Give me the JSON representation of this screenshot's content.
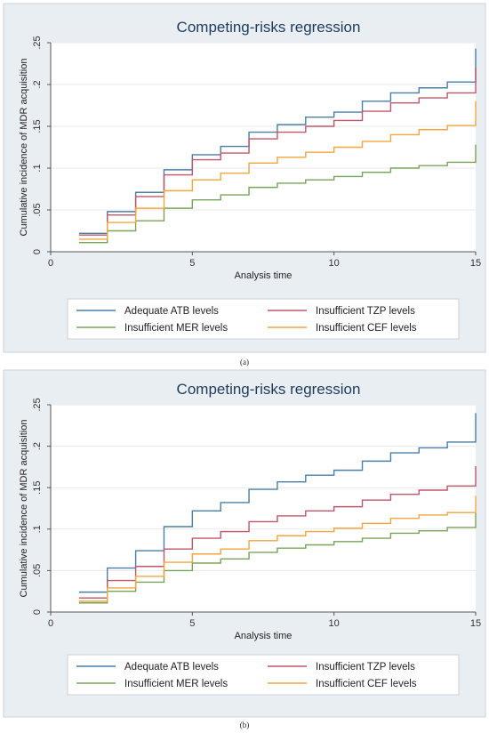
{
  "figure": {
    "caption_a": "(a)",
    "caption_b": "(b)"
  },
  "chart_data": [
    {
      "type": "line",
      "step": true,
      "title": "Competing-risks regression",
      "xlabel": "Analysis time",
      "ylabel": "Cumulative incidence of MDR acquisition",
      "xlim": [
        0,
        15
      ],
      "ylim": [
        0,
        0.25
      ],
      "xticks": [
        0,
        5,
        10,
        15
      ],
      "xtick_labels": [
        "0",
        "5",
        "10",
        "15"
      ],
      "yticks": [
        0,
        0.05,
        0.1,
        0.15,
        0.2,
        0.25
      ],
      "ytick_labels": [
        "0",
        ".05",
        ".1",
        ".15",
        ".2",
        ".25"
      ],
      "grid": true,
      "legend_position": "bottom",
      "x": [
        1,
        2,
        3,
        4,
        5,
        6,
        7,
        8,
        9,
        10,
        11,
        12,
        13,
        14,
        15
      ],
      "series": [
        {
          "name": "Adequate ATB levels",
          "color": "#4a7fa5",
          "values": [
            0.022,
            0.048,
            0.071,
            0.098,
            0.116,
            0.126,
            0.143,
            0.152,
            0.161,
            0.167,
            0.18,
            0.19,
            0.196,
            0.203,
            0.243
          ]
        },
        {
          "name": "Insufficient TZP levels",
          "color": "#c0566a",
          "values": [
            0.02,
            0.044,
            0.066,
            0.092,
            0.11,
            0.118,
            0.135,
            0.143,
            0.15,
            0.157,
            0.168,
            0.178,
            0.184,
            0.19,
            0.22
          ]
        },
        {
          "name": "Insufficient MER levels",
          "color": "#7aa35a",
          "values": [
            0.011,
            0.025,
            0.037,
            0.052,
            0.062,
            0.068,
            0.077,
            0.082,
            0.086,
            0.09,
            0.095,
            0.1,
            0.103,
            0.107,
            0.128
          ]
        },
        {
          "name": "Insufficient CEF levels",
          "color": "#f2a63d",
          "values": [
            0.015,
            0.035,
            0.052,
            0.073,
            0.086,
            0.094,
            0.106,
            0.113,
            0.119,
            0.125,
            0.132,
            0.14,
            0.146,
            0.151,
            0.18
          ]
        }
      ]
    },
    {
      "type": "line",
      "step": true,
      "title": "Competing-risks regression",
      "xlabel": "Analysis time",
      "ylabel": "Cumulative incidence of MDR acquisition",
      "xlim": [
        0,
        15
      ],
      "ylim": [
        0,
        0.25
      ],
      "xticks": [
        0,
        5,
        10,
        15
      ],
      "xtick_labels": [
        "0",
        "5",
        "10",
        "15"
      ],
      "yticks": [
        0,
        0.05,
        0.1,
        0.15,
        0.2,
        0.25
      ],
      "ytick_labels": [
        "0",
        ".05",
        ".1",
        ".15",
        ".2",
        ".25"
      ],
      "grid": true,
      "legend_position": "bottom",
      "x": [
        1,
        2,
        3,
        4,
        5,
        6,
        7,
        8,
        9,
        10,
        11,
        12,
        13,
        14,
        15
      ],
      "series": [
        {
          "name": "Adequate ATB levels",
          "color": "#4a7fa5",
          "values": [
            0.024,
            0.053,
            0.074,
            0.103,
            0.122,
            0.132,
            0.148,
            0.157,
            0.165,
            0.171,
            0.182,
            0.192,
            0.198,
            0.205,
            0.24
          ]
        },
        {
          "name": "Insufficient TZP levels",
          "color": "#c0566a",
          "values": [
            0.017,
            0.038,
            0.055,
            0.076,
            0.089,
            0.097,
            0.109,
            0.116,
            0.122,
            0.127,
            0.135,
            0.142,
            0.147,
            0.152,
            0.176
          ]
        },
        {
          "name": "Insufficient MER levels",
          "color": "#7aa35a",
          "values": [
            0.011,
            0.025,
            0.036,
            0.05,
            0.059,
            0.064,
            0.072,
            0.077,
            0.081,
            0.085,
            0.089,
            0.095,
            0.098,
            0.102,
            0.12
          ]
        },
        {
          "name": "Insufficient CEF levels",
          "color": "#f2a63d",
          "values": [
            0.013,
            0.029,
            0.043,
            0.06,
            0.07,
            0.076,
            0.086,
            0.092,
            0.097,
            0.101,
            0.107,
            0.113,
            0.117,
            0.12,
            0.14
          ]
        }
      ]
    }
  ]
}
